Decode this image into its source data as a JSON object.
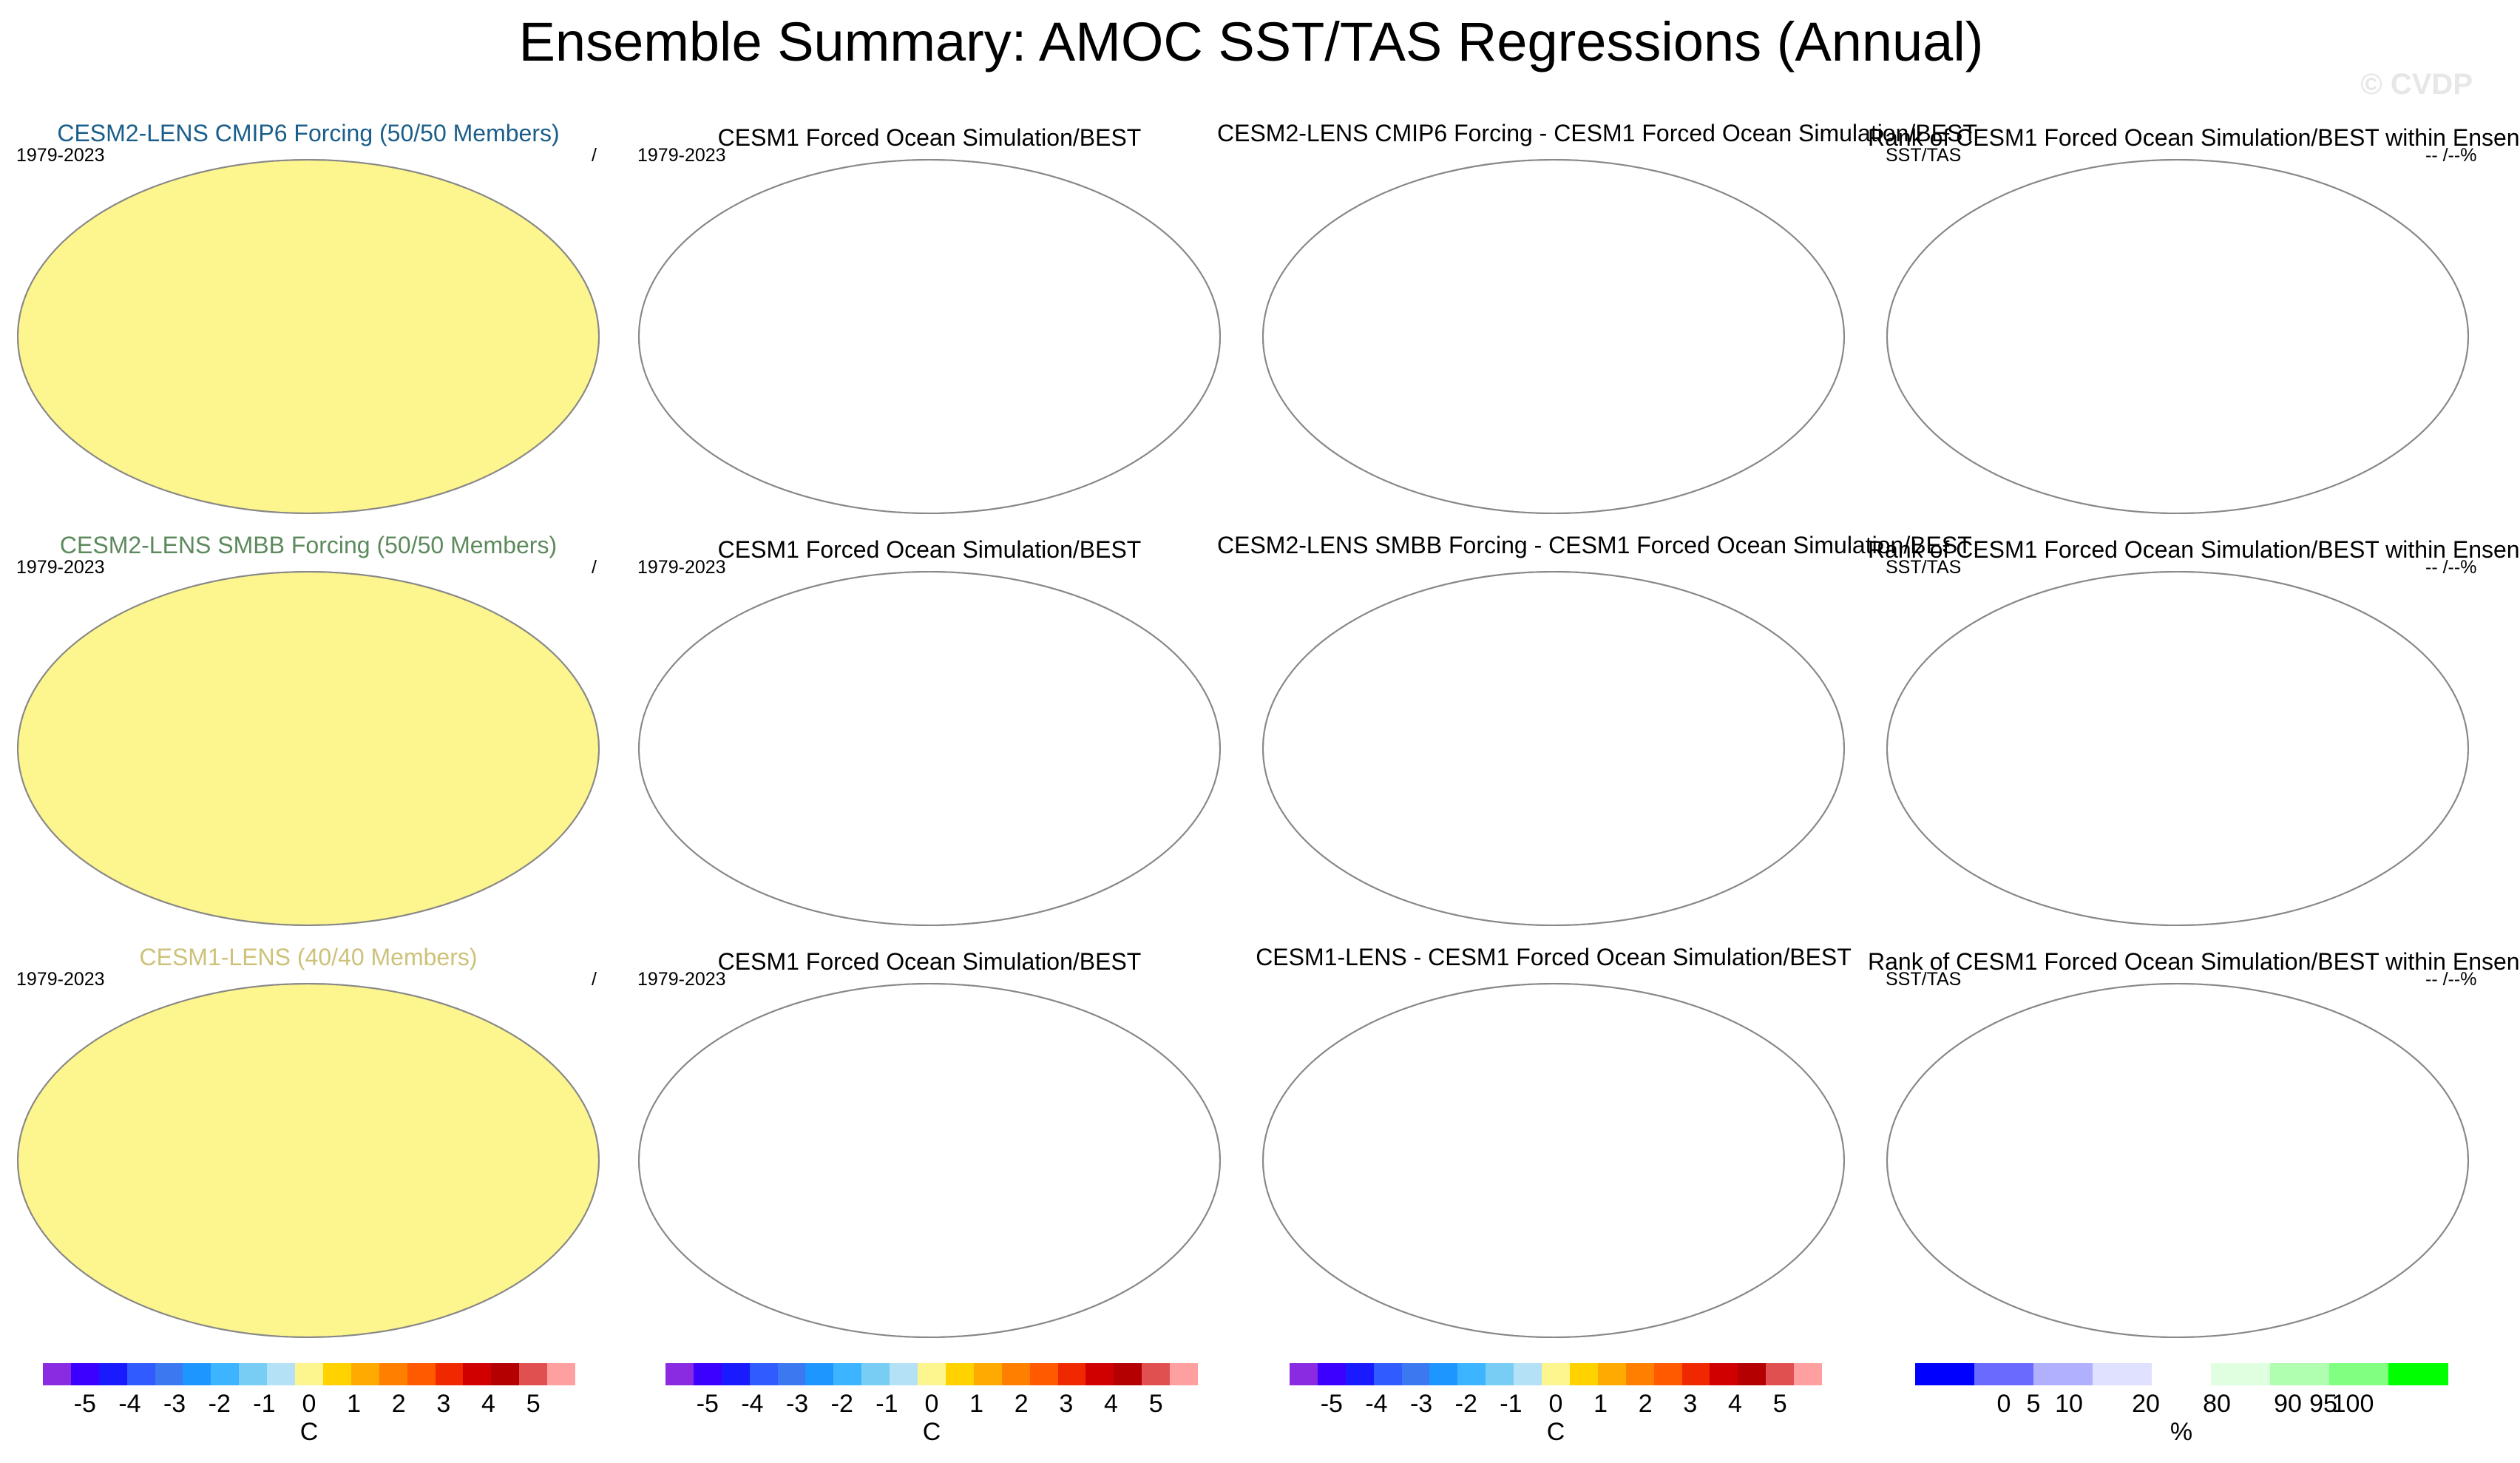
{
  "title": "Ensemble Summary: AMOC SST/TAS Regressions (Annual)",
  "watermark": "© CVDP",
  "colors": {
    "positive_fill": "#fdf58e",
    "negative_fill": "#bfe2f5",
    "row1_title": "#1a5e8a",
    "row2_title": "#5d8a5d",
    "row3_title": "#cdc27a"
  },
  "rows": [
    {
      "col1": {
        "title": "CESM2-LENS CMIP6 Forcing (50/50 Members)",
        "period": "1979-2023",
        "right": "/"
      },
      "col2": {
        "title": "CESM1 Forced Ocean Simulation/BEST",
        "period": "1979-2023"
      },
      "col3": {
        "title": "CESM2-LENS CMIP6 Forcing - CESM1 Forced Ocean Simulation/BEST"
      },
      "col4": {
        "title": "Rank of CESM1 Forced Ocean Simulation/BEST within Ensen",
        "left": "SST/TAS",
        "right": "-- /--%"
      }
    },
    {
      "col1": {
        "title": "CESM2-LENS SMBB Forcing (50/50 Members)",
        "period": "1979-2023",
        "right": "/"
      },
      "col2": {
        "title": "CESM1 Forced Ocean Simulation/BEST",
        "period": "1979-2023"
      },
      "col3": {
        "title": "CESM2-LENS SMBB Forcing - CESM1 Forced Ocean Simulation/BEST"
      },
      "col4": {
        "title": "Rank of CESM1 Forced Ocean Simulation/BEST within Ensen",
        "left": "SST/TAS",
        "right": "-- /--%"
      }
    },
    {
      "col1": {
        "title": "CESM1-LENS (40/40 Members)",
        "period": "1979-2023",
        "right": "/"
      },
      "col2": {
        "title": "CESM1 Forced Ocean Simulation/BEST",
        "period": "1979-2023"
      },
      "col3": {
        "title": "CESM1-LENS - CESM1 Forced Ocean Simulation/BEST"
      },
      "col4": {
        "title": "Rank of CESM1 Forced Ocean Simulation/BEST within Ensen",
        "left": "SST/TAS",
        "right": "-- /--%"
      }
    }
  ],
  "colorbars": {
    "temp": {
      "colors": [
        "#8a2be2",
        "#3b00ff",
        "#1a1aff",
        "#2f5bff",
        "#3c79f0",
        "#1e96ff",
        "#3cb4ff",
        "#78cdf5",
        "#b4e1f5",
        "#fdf58e",
        "#ffd200",
        "#ffaa00",
        "#ff8000",
        "#ff5a00",
        "#f02800",
        "#d10000",
        "#b40000",
        "#e05050",
        "#ffa0a0"
      ],
      "ticks": [
        "-5",
        "-4",
        "-3",
        "-2",
        "-1",
        "0",
        "1",
        "2",
        "3",
        "4",
        "5"
      ],
      "unit": "C"
    },
    "rank": {
      "colors": [
        "#0000ff",
        "#6a6aff",
        "#b0b0ff",
        "#e0e0ff",
        "#ffffff",
        "#e0ffe0",
        "#b0ffb0",
        "#80ff80",
        "#00ff00"
      ],
      "ticks": [
        "0",
        "5",
        "10",
        "20",
        "80",
        "90",
        "95",
        "100"
      ],
      "unit": "%"
    }
  }
}
